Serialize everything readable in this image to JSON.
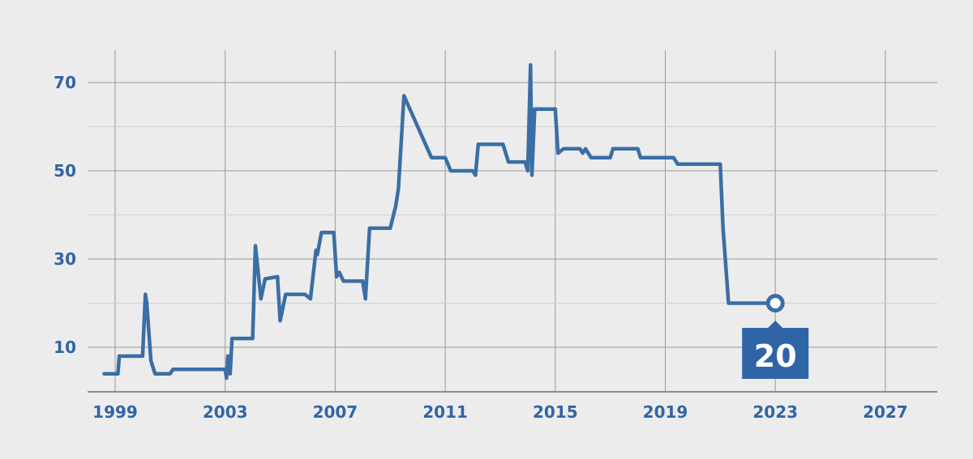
{
  "chart_data": {
    "type": "line",
    "title": "",
    "xlabel": "",
    "ylabel": "",
    "xlim": [
      1997.9,
      2029.0
    ],
    "ylim": [
      0,
      77.5
    ],
    "x_ticks": [
      {
        "value": 1999,
        "label": "1999"
      },
      {
        "value": 2003,
        "label": "2003"
      },
      {
        "value": 2007,
        "label": "2007"
      },
      {
        "value": 2011,
        "label": "2011"
      },
      {
        "value": 2015,
        "label": "2015"
      },
      {
        "value": 2019,
        "label": "2019"
      },
      {
        "value": 2023,
        "label": "2023"
      },
      {
        "value": 2027,
        "label": "2027"
      }
    ],
    "y_ticks": [
      {
        "value": 10,
        "label": "10"
      },
      {
        "value": 30,
        "label": "30"
      },
      {
        "value": 50,
        "label": "50"
      },
      {
        "value": 70,
        "label": "70"
      }
    ],
    "y_minor_ticks": [
      20,
      40,
      60
    ],
    "grid": true,
    "colors": {
      "background": "#ececec",
      "line": "#3a6ea5",
      "axis_text": "#2f65a7",
      "grid_major": "#9a9a9a",
      "grid_minor": "#d0d0d0",
      "callout_bg": "#2f65a7",
      "callout_text": "#ffffff"
    },
    "series": [
      {
        "x": [
          1998.6,
          1999.1,
          1999.15,
          2000.0,
          2000.1,
          2000.15,
          2000.3,
          2000.45,
          2001.0,
          2001.1,
          2003.0,
          2003.05,
          2003.1,
          2003.18,
          2003.25,
          2003.35,
          2003.5,
          2004.0,
          2004.1,
          2004.3,
          2004.45,
          2004.9,
          2005.0,
          2005.2,
          2005.9,
          2006.1,
          2006.3,
          2006.35,
          2006.5,
          2006.6,
          2006.95,
          2007.05,
          2007.15,
          2007.3,
          2008.0,
          2008.1,
          2008.25,
          2009.0,
          2009.2,
          2009.3,
          2009.5,
          2010.5,
          2011.0,
          2011.2,
          2012.0,
          2012.1,
          2012.2,
          2013.0,
          2013.1,
          2013.3,
          2013.9,
          2014.0,
          2014.1,
          2014.15,
          2014.25,
          2015.0,
          2015.1,
          2015.3,
          2015.9,
          2016.0,
          2016.1,
          2016.3,
          2017.0,
          2017.1,
          2018.0,
          2018.1,
          2019.3,
          2019.45,
          2020.9,
          2021.0,
          2021.1,
          2021.3,
          2023.0
        ],
        "y": [
          4,
          4,
          8,
          8,
          22,
          20,
          7,
          4,
          4,
          5,
          5,
          3,
          8,
          4,
          12,
          12,
          12,
          12,
          33,
          21,
          25.5,
          26,
          16,
          22,
          22,
          21,
          32,
          31,
          36,
          36,
          36,
          26,
          27,
          25,
          25,
          21,
          37,
          37,
          42,
          46,
          67,
          53,
          53,
          50,
          50,
          49,
          56,
          56,
          56,
          52,
          52,
          50,
          74,
          49,
          64,
          64,
          54,
          55,
          55,
          54,
          55,
          53,
          53,
          55,
          55,
          53,
          53,
          51.5,
          51.5,
          51.5,
          37,
          20,
          20
        ]
      }
    ],
    "last_value": {
      "x": 2023.0,
      "y": 20,
      "label": "20"
    }
  }
}
